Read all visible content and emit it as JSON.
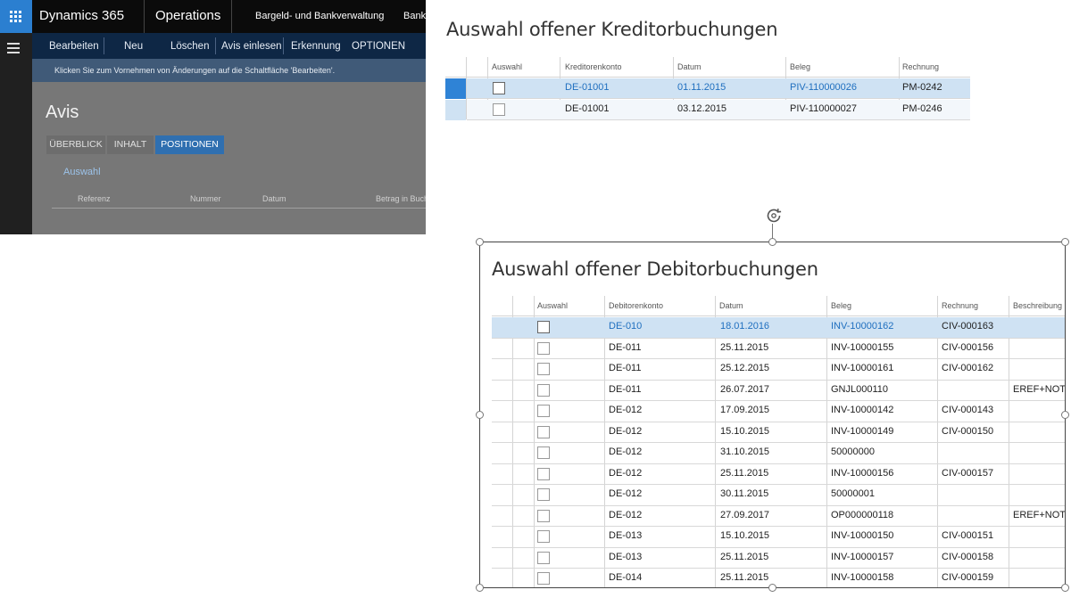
{
  "app": {
    "brand": "Dynamics 365",
    "module": "Operations",
    "breadcrumb": [
      "Bargeld- und Bankverwaltung",
      "Bank"
    ]
  },
  "action_bar": {
    "items": [
      "Bearbeiten",
      "Neu",
      "Löschen",
      "Avis einlesen",
      "Erkennung",
      "OPTIONEN"
    ]
  },
  "message_bar": {
    "text": "Klicken Sie zum Vornehmen von Änderungen auf die Schaltfläche 'Bearbeiten'."
  },
  "page": {
    "title": "Avis",
    "tabs": [
      {
        "label": "ÜBERBLICK",
        "active": false
      },
      {
        "label": "INHALT",
        "active": false
      },
      {
        "label": "POSITIONEN",
        "active": true
      }
    ],
    "section_link": "Auswahl",
    "columns": [
      "Referenz",
      "Nummer",
      "Datum",
      "Betrag in Buch"
    ]
  },
  "kreditor": {
    "title": "Auswahl offener Kreditorbuchungen",
    "columns": [
      "Auswahl",
      "Kreditorenkonto",
      "Datum",
      "Beleg",
      "Rechnung"
    ],
    "rows": [
      {
        "selected": true,
        "checked": false,
        "konto": "DE-01001",
        "datum": "01.11.2015",
        "beleg": "PIV-110000026",
        "rechnung": "PM-0242"
      },
      {
        "selected": false,
        "checked": false,
        "konto": "DE-01001",
        "datum": "03.12.2015",
        "beleg": "PIV-110000027",
        "rechnung": "PM-0246"
      }
    ]
  },
  "debitor": {
    "title": "Auswahl offener Debitorbuchungen",
    "columns": [
      "Auswahl",
      "Debitorenkonto",
      "Datum",
      "Beleg",
      "Rechnung",
      "Beschreibung"
    ],
    "rows": [
      {
        "selected": true,
        "konto": "DE-010",
        "datum": "18.01.2016",
        "beleg": "INV-10000162",
        "rechnung": "CIV-000163",
        "beschreibung": ""
      },
      {
        "selected": false,
        "konto": "DE-011",
        "datum": "25.11.2015",
        "beleg": "INV-10000155",
        "rechnung": "CIV-000156",
        "beschreibung": ""
      },
      {
        "selected": false,
        "konto": "DE-011",
        "datum": "25.12.2015",
        "beleg": "INV-10000161",
        "rechnung": "CIV-000162",
        "beschreibung": ""
      },
      {
        "selected": false,
        "konto": "DE-011",
        "datum": "26.07.2017",
        "beleg": "GNJL000110",
        "rechnung": "",
        "beschreibung": "EREF+NOTP"
      },
      {
        "selected": false,
        "konto": "DE-012",
        "datum": "17.09.2015",
        "beleg": "INV-10000142",
        "rechnung": "CIV-000143",
        "beschreibung": ""
      },
      {
        "selected": false,
        "konto": "DE-012",
        "datum": "15.10.2015",
        "beleg": "INV-10000149",
        "rechnung": "CIV-000150",
        "beschreibung": ""
      },
      {
        "selected": false,
        "konto": "DE-012",
        "datum": "31.10.2015",
        "beleg": "50000000",
        "rechnung": "",
        "beschreibung": ""
      },
      {
        "selected": false,
        "konto": "DE-012",
        "datum": "25.11.2015",
        "beleg": "INV-10000156",
        "rechnung": "CIV-000157",
        "beschreibung": ""
      },
      {
        "selected": false,
        "konto": "DE-012",
        "datum": "30.11.2015",
        "beleg": "50000001",
        "rechnung": "",
        "beschreibung": ""
      },
      {
        "selected": false,
        "konto": "DE-012",
        "datum": "27.09.2017",
        "beleg": "OP000000118",
        "rechnung": "",
        "beschreibung": "EREF+NOTP"
      },
      {
        "selected": false,
        "konto": "DE-013",
        "datum": "15.10.2015",
        "beleg": "INV-10000150",
        "rechnung": "CIV-000151",
        "beschreibung": ""
      },
      {
        "selected": false,
        "konto": "DE-013",
        "datum": "25.11.2015",
        "beleg": "INV-10000157",
        "rechnung": "CIV-000158",
        "beschreibung": ""
      },
      {
        "selected": false,
        "konto": "DE-014",
        "datum": "25.11.2015",
        "beleg": "INV-10000158",
        "rechnung": "CIV-000159",
        "beschreibung": ""
      }
    ]
  },
  "colors": {
    "accent": "#2f83d6",
    "selected_row": "#cfe2f3",
    "link": "#1f6fbf",
    "nav_dark": "#0b0b0b",
    "action_bar": "#0e2745"
  }
}
